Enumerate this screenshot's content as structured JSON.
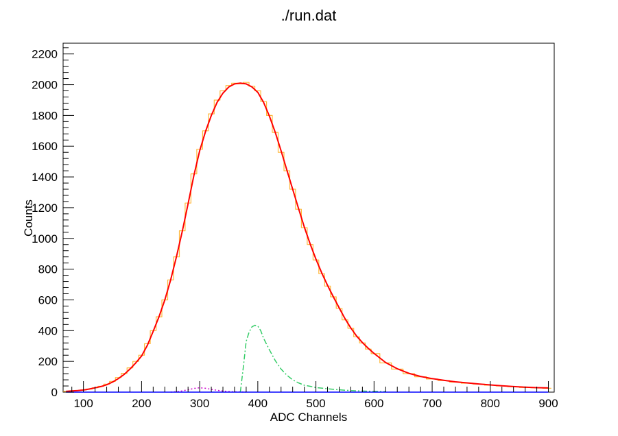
{
  "chart_data": {
    "type": "line",
    "title": "./run.dat",
    "xlabel": "ADC Channels",
    "ylabel": "Counts",
    "xlim": [
      65,
      910
    ],
    "ylim": [
      0,
      2270
    ],
    "x_ticks": [
      100,
      200,
      300,
      400,
      500,
      600,
      700,
      800,
      900
    ],
    "y_ticks": [
      0,
      200,
      400,
      600,
      800,
      1000,
      1200,
      1400,
      1600,
      1800,
      2000,
      2200
    ],
    "grid": false,
    "legend": "none",
    "series": [
      {
        "role": "histogram",
        "color": "#ffb83a",
        "style": "step",
        "x": [
          70,
          80,
          90,
          100,
          110,
          120,
          130,
          140,
          150,
          160,
          170,
          180,
          190,
          200,
          210,
          220,
          230,
          240,
          250,
          260,
          270,
          280,
          290,
          300,
          310,
          320,
          330,
          340,
          350,
          360,
          370,
          380,
          390,
          400,
          410,
          420,
          430,
          440,
          450,
          460,
          470,
          480,
          490,
          500,
          510,
          520,
          530,
          540,
          550,
          560,
          570,
          580,
          590,
          600,
          620,
          640,
          660,
          680,
          700,
          720,
          740,
          760,
          780,
          800,
          820,
          840,
          860,
          880,
          900
        ],
        "y": [
          5,
          8,
          10,
          14,
          20,
          28,
          38,
          52,
          70,
          95,
          122,
          158,
          200,
          240,
          315,
          400,
          490,
          600,
          730,
          880,
          1050,
          1230,
          1420,
          1580,
          1700,
          1810,
          1900,
          1960,
          1995,
          2010,
          2005,
          2015,
          1990,
          1960,
          1890,
          1800,
          1690,
          1560,
          1440,
          1320,
          1190,
          1070,
          960,
          860,
          770,
          690,
          620,
          545,
          470,
          415,
          360,
          320,
          280,
          250,
          190,
          150,
          120,
          100,
          85,
          75,
          65,
          58,
          52,
          45,
          40,
          35,
          30,
          28,
          25
        ]
      },
      {
        "role": "total-fit",
        "color": "#ff0000",
        "style": "solid",
        "x": [
          70,
          80,
          90,
          100,
          110,
          120,
          130,
          140,
          150,
          160,
          170,
          180,
          190,
          200,
          210,
          220,
          230,
          240,
          250,
          260,
          270,
          280,
          290,
          300,
          310,
          320,
          330,
          340,
          350,
          360,
          370,
          380,
          390,
          400,
          410,
          420,
          430,
          440,
          450,
          460,
          470,
          480,
          490,
          500,
          510,
          520,
          530,
          540,
          550,
          560,
          570,
          580,
          590,
          600,
          620,
          640,
          660,
          680,
          700,
          720,
          740,
          760,
          780,
          800,
          820,
          840,
          860,
          880,
          900
        ],
        "y": [
          5,
          8,
          10,
          14,
          20,
          28,
          36,
          48,
          65,
          88,
          115,
          150,
          190,
          235,
          305,
          395,
          490,
          600,
          730,
          880,
          1045,
          1225,
          1410,
          1570,
          1695,
          1800,
          1885,
          1945,
          1985,
          2005,
          2010,
          2005,
          1985,
          1950,
          1885,
          1795,
          1690,
          1570,
          1445,
          1320,
          1195,
          1075,
          965,
          865,
          775,
          695,
          620,
          548,
          478,
          418,
          365,
          322,
          285,
          252,
          192,
          152,
          122,
          102,
          88,
          77,
          67,
          60,
          53,
          47,
          41,
          36,
          32,
          29,
          27
        ]
      },
      {
        "role": "component-peak",
        "color": "#33cc66",
        "style": "dash-dot",
        "x": [
          370,
          375,
          380,
          385,
          390,
          395,
          400,
          405,
          410,
          420,
          430,
          440,
          450,
          460,
          470,
          480,
          490,
          500,
          520,
          540,
          560,
          580,
          600,
          620
        ],
        "y": [
          0,
          160,
          330,
          390,
          425,
          435,
          430,
          400,
          350,
          275,
          205,
          150,
          110,
          80,
          60,
          45,
          38,
          30,
          22,
          15,
          10,
          7,
          5,
          3
        ]
      },
      {
        "role": "component-low",
        "color": "#cc00cc",
        "style": "dotted",
        "x": [
          250,
          260,
          270,
          280,
          290,
          300,
          310,
          320,
          330,
          340,
          350,
          360,
          380
        ],
        "y": [
          0,
          3,
          8,
          15,
          24,
          28,
          25,
          18,
          12,
          7,
          4,
          2,
          0
        ]
      },
      {
        "role": "background",
        "color": "#0000ff",
        "style": "solid",
        "x": [
          70,
          900
        ],
        "y": [
          0,
          0
        ]
      }
    ]
  }
}
